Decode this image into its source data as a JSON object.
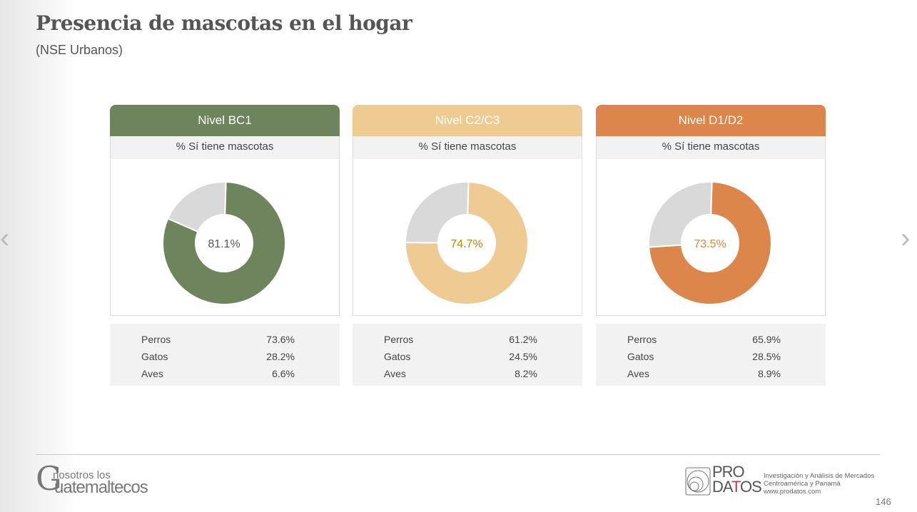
{
  "title": "Presencia de mascotas en el hogar",
  "subtitle": "(NSE Urbanos)",
  "panels": [
    {
      "header": "Nivel BC1",
      "subheader": "% Sí tiene mascotas",
      "value": 81.1,
      "label": "81.1%",
      "color": "#6e845d",
      "label_color": "#555555",
      "rows": [
        {
          "name": "Perros",
          "value": "73.6%"
        },
        {
          "name": "Gatos",
          "value": "28.2%"
        },
        {
          "name": "Aves",
          "value": "6.6%"
        }
      ]
    },
    {
      "header": "Nivel C2/C3",
      "subheader": "% Sí tiene mascotas",
      "value": 74.7,
      "label": "74.7%",
      "color": "#eecb93",
      "label_color": "#b8860b",
      "rows": [
        {
          "name": "Perros",
          "value": "61.2%"
        },
        {
          "name": "Gatos",
          "value": "24.5%"
        },
        {
          "name": "Aves",
          "value": "8.2%"
        }
      ]
    },
    {
      "header": "Nivel D1/D2",
      "subheader": "% Sí tiene mascotas",
      "value": 73.5,
      "label": "73.5%",
      "color": "#dc864b",
      "label_color": "#dc864b",
      "rows": [
        {
          "name": "Perros",
          "value": "65.9%"
        },
        {
          "name": "Gatos",
          "value": "28.5%"
        },
        {
          "name": "Aves",
          "value": "8.9%"
        }
      ]
    }
  ],
  "remainder_color": "#d9d9d9",
  "footer": {
    "logo_left_small": "nosotros los",
    "logo_left_big": "Guatemaltecos",
    "logo_right_1": "PRO",
    "logo_right_2": "DATOS",
    "info": [
      "Investigación y Análisis de Mercados",
      "Centroamérica y Panamá",
      "www.prodatos.com"
    ],
    "page": "146"
  },
  "nav": {
    "prev": "‹",
    "next": "›"
  }
}
